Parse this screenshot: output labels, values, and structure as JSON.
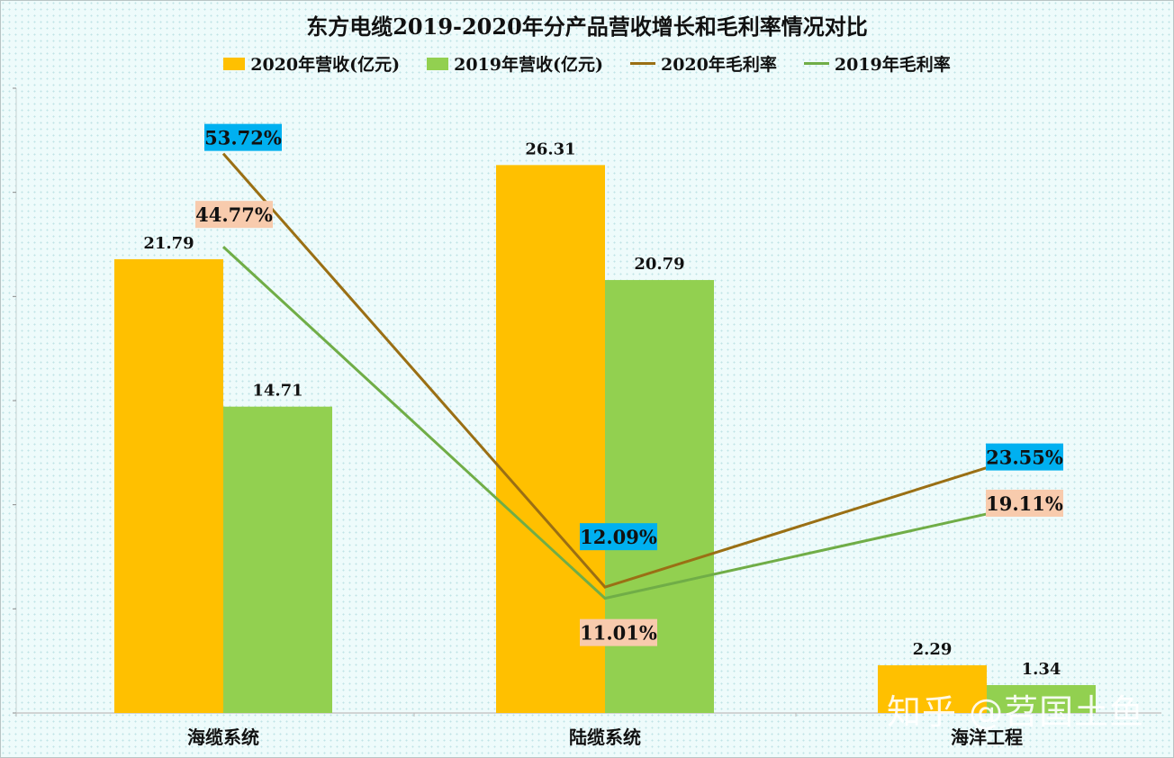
{
  "chart_data": {
    "type": "bar",
    "title": "东方电缆2019-2020年分产品营收增长和毛利率情况对比",
    "categories": [
      "海缆系统",
      "陆缆系统",
      "海洋工程"
    ],
    "series": [
      {
        "name": "2020年营收(亿元)",
        "type": "bar",
        "color": "#ffc000",
        "values": [
          21.79,
          26.31,
          2.29
        ],
        "labels": [
          "21.79",
          "26.31",
          "2.29"
        ]
      },
      {
        "name": "2019年营收(亿元)",
        "type": "bar",
        "color": "#92d050",
        "values": [
          14.71,
          20.79,
          1.34
        ],
        "labels": [
          "14.71",
          "20.79",
          "1.34"
        ]
      },
      {
        "name": "2020年毛利率",
        "type": "line",
        "color": "#9a6f14",
        "values": [
          53.72,
          12.09,
          23.55
        ],
        "labels": [
          "53.72%",
          "12.09%",
          "23.55%"
        ],
        "label_bg": "#00b0f0"
      },
      {
        "name": "2019年毛利率",
        "type": "line",
        "color": "#70ad47",
        "values": [
          44.77,
          11.01,
          19.11
        ],
        "labels": [
          "44.77%",
          "11.01%",
          "19.11%"
        ],
        "label_bg": "#f8cbad"
      }
    ],
    "bar_ylim": [
      0,
      30
    ],
    "line_ylim": [
      0,
      60
    ],
    "grid": false,
    "legend": "top"
  },
  "watermark": "知乎 @苕国土鱼"
}
